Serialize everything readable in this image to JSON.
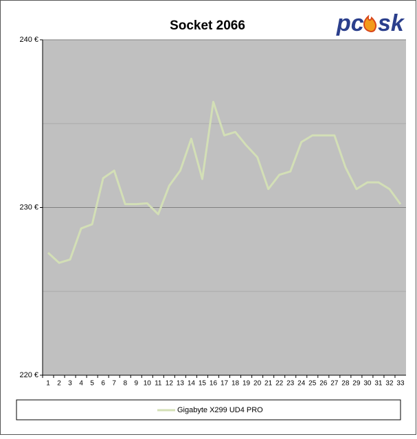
{
  "chart_data": {
    "type": "line",
    "title": "Socket 2066",
    "logo": {
      "left": "pc",
      "right": "sk"
    },
    "categories": [
      "1",
      "2",
      "3",
      "4",
      "5",
      "6",
      "7",
      "8",
      "9",
      "10",
      "11",
      "12",
      "13",
      "14",
      "15",
      "16",
      "17",
      "18",
      "19",
      "20",
      "21",
      "22",
      "23",
      "24",
      "25",
      "26",
      "27",
      "28",
      "29",
      "30",
      "31",
      "32",
      "33"
    ],
    "series": [
      {
        "name": "Gigabyte X299 UD4 PRO",
        "color": "#d3dfb6",
        "values": [
          227.3,
          226.7,
          226.9,
          228.75,
          229.0,
          231.75,
          232.2,
          230.2,
          230.2,
          230.25,
          229.6,
          231.3,
          232.2,
          234.1,
          231.7,
          236.3,
          234.3,
          234.5,
          233.7,
          233.0,
          231.1,
          231.95,
          232.15,
          233.9,
          234.3,
          234.3,
          234.3,
          232.4,
          231.1,
          231.5,
          231.5,
          231.1,
          230.2
        ]
      }
    ],
    "ylim": [
      220,
      240
    ],
    "yticks": [
      {
        "value": 220,
        "label": "220 €"
      },
      {
        "value": 230,
        "label": "230 €"
      },
      {
        "value": 240,
        "label": "240 €"
      }
    ],
    "minor_grid": [
      225,
      235
    ],
    "grid": true,
    "plot_color": "#c0c0c0",
    "legend": "bottom"
  }
}
